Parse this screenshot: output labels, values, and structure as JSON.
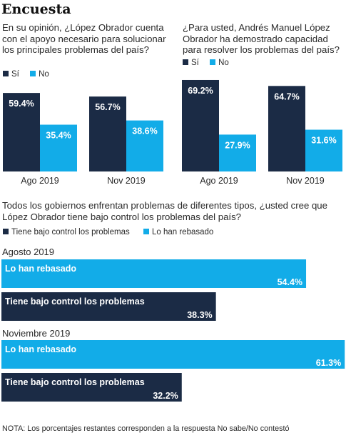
{
  "title": "Encuesta",
  "colors": {
    "dark": "#1b2b45",
    "light": "#12ace8"
  },
  "chart_data": [
    {
      "type": "bar",
      "title": "En su opinión, ¿López Obrador cuenta con el apoyo necesario para solucionar los principales problemas del país?",
      "legend": [
        "Sí",
        "No"
      ],
      "categories": [
        "Ago 2019",
        "Nov 2019"
      ],
      "series": [
        {
          "name": "Sí",
          "values": [
            59.4,
            56.7
          ]
        },
        {
          "name": "No",
          "values": [
            35.4,
            38.6
          ]
        }
      ],
      "value_labels": {
        "Sí": [
          "59.4%",
          "56.7%"
        ],
        "No": [
          "35.4%",
          "38.6%"
        ]
      }
    },
    {
      "type": "bar",
      "title": "¿Para usted, Andrés Manuel López Obrador ha demostrado capacidad para resolver los problemas del país?",
      "legend": [
        "Sí",
        "No"
      ],
      "categories": [
        "Ago 2019",
        "Nov 2019"
      ],
      "series": [
        {
          "name": "Sí",
          "values": [
            69.2,
            64.7
          ]
        },
        {
          "name": "No",
          "values": [
            27.9,
            31.6
          ]
        }
      ],
      "value_labels": {
        "Sí": [
          "69.2%",
          "64.7%"
        ],
        "No": [
          "27.9%",
          "31.6%"
        ]
      }
    },
    {
      "type": "bar",
      "orientation": "horizontal",
      "title": "Todos los gobiernos enfrentan problemas de diferentes tipos, ¿usted cree que López Obrador tiene bajo control los problemas del país?",
      "legend": [
        "Tiene bajo control los problemas",
        "Lo han rebasado"
      ],
      "groups": [
        {
          "label": "Agosto 2019",
          "bars": [
            {
              "name": "Lo han rebasado",
              "value": 54.4,
              "value_label": "54.4%"
            },
            {
              "name": "Tiene bajo control los problemas",
              "value": 38.3,
              "value_label": "38.3%"
            }
          ]
        },
        {
          "label": "Noviembre 2019",
          "bars": [
            {
              "name": "Lo han rebasado",
              "value": 61.3,
              "value_label": "61.3%"
            },
            {
              "name": "Tiene bajo control los problemas",
              "value": 32.2,
              "value_label": "32.2%"
            }
          ]
        }
      ]
    }
  ],
  "note": "NOTA: Los porcentajes restantes corresponden a la respuesta No sabe/No contestó"
}
